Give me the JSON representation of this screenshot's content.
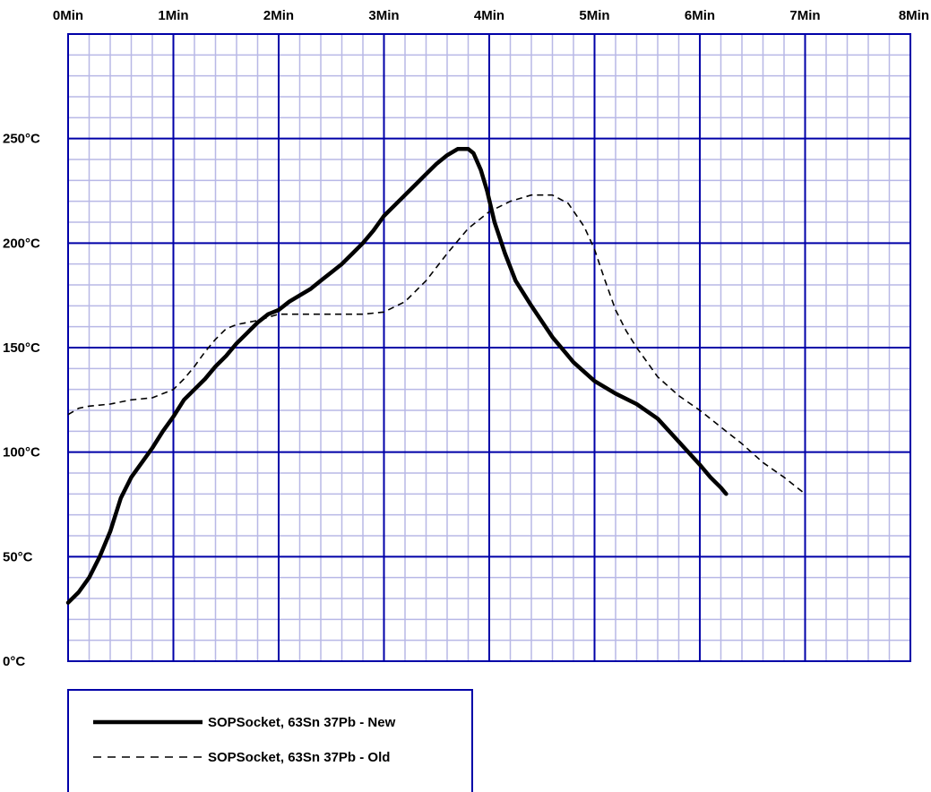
{
  "chart_data": {
    "type": "line",
    "title": "",
    "xlabel": "",
    "ylabel": "",
    "x_unit": "minutes",
    "y_unit": "degC",
    "xlim": [
      0,
      8
    ],
    "ylim": [
      0,
      300
    ],
    "x_ticks": [
      {
        "value": 0,
        "label": "0Min"
      },
      {
        "value": 1,
        "label": "1Min"
      },
      {
        "value": 2,
        "label": "2Min"
      },
      {
        "value": 3,
        "label": "3Min"
      },
      {
        "value": 4,
        "label": "4Min"
      },
      {
        "value": 5,
        "label": "5Min"
      },
      {
        "value": 6,
        "label": "6Min"
      },
      {
        "value": 7,
        "label": "7Min"
      },
      {
        "value": 8,
        "label": "8Min"
      }
    ],
    "y_ticks": [
      {
        "value": 0,
        "label": "0°C"
      },
      {
        "value": 50,
        "label": "50°C"
      },
      {
        "value": 100,
        "label": "100°C"
      },
      {
        "value": 150,
        "label": "150°C"
      },
      {
        "value": 200,
        "label": "200°C"
      },
      {
        "value": 250,
        "label": "250°C"
      }
    ],
    "x_tick_position": "top",
    "grid": {
      "major": true,
      "minor": true,
      "major_color": "#0000a8",
      "minor_color": "#b8b8e6",
      "minor_x_step": 0.2,
      "minor_y_step": 10
    },
    "plot_border_color": "#0000a8",
    "legend_placement": "bottom-left",
    "series": [
      {
        "name": "SOPSocket,  63Sn  37Pb  - New",
        "style": "solid",
        "color": "#000000",
        "points": [
          [
            0.0,
            28
          ],
          [
            0.1,
            33
          ],
          [
            0.2,
            40
          ],
          [
            0.3,
            50
          ],
          [
            0.4,
            62
          ],
          [
            0.5,
            78
          ],
          [
            0.6,
            88
          ],
          [
            0.7,
            95
          ],
          [
            0.8,
            102
          ],
          [
            0.9,
            110
          ],
          [
            1.0,
            117
          ],
          [
            1.1,
            125
          ],
          [
            1.2,
            130
          ],
          [
            1.3,
            135
          ],
          [
            1.4,
            141
          ],
          [
            1.5,
            146
          ],
          [
            1.6,
            152
          ],
          [
            1.7,
            157
          ],
          [
            1.8,
            162
          ],
          [
            1.9,
            166
          ],
          [
            2.0,
            168
          ],
          [
            2.1,
            172
          ],
          [
            2.2,
            175
          ],
          [
            2.3,
            178
          ],
          [
            2.4,
            182
          ],
          [
            2.5,
            186
          ],
          [
            2.6,
            190
          ],
          [
            2.7,
            195
          ],
          [
            2.8,
            200
          ],
          [
            2.9,
            206
          ],
          [
            3.0,
            213
          ],
          [
            3.1,
            218
          ],
          [
            3.2,
            223
          ],
          [
            3.3,
            228
          ],
          [
            3.4,
            233
          ],
          [
            3.5,
            238
          ],
          [
            3.6,
            242
          ],
          [
            3.7,
            245
          ],
          [
            3.8,
            245
          ],
          [
            3.85,
            243
          ],
          [
            3.92,
            235
          ],
          [
            3.98,
            225
          ],
          [
            4.05,
            210
          ],
          [
            4.15,
            195
          ],
          [
            4.25,
            182
          ],
          [
            4.4,
            170
          ],
          [
            4.6,
            155
          ],
          [
            4.8,
            143
          ],
          [
            5.0,
            134
          ],
          [
            5.2,
            128
          ],
          [
            5.4,
            123
          ],
          [
            5.6,
            116
          ],
          [
            5.8,
            105
          ],
          [
            6.0,
            94
          ],
          [
            6.1,
            88
          ],
          [
            6.2,
            83
          ],
          [
            6.25,
            80
          ]
        ]
      },
      {
        "name": "SOPSocket,  63Sn  37Pb  - Old",
        "style": "dashed",
        "color": "#000000",
        "points": [
          [
            0.0,
            118
          ],
          [
            0.1,
            121
          ],
          [
            0.2,
            122
          ],
          [
            0.4,
            123
          ],
          [
            0.6,
            125
          ],
          [
            0.8,
            126
          ],
          [
            1.0,
            130
          ],
          [
            1.1,
            135
          ],
          [
            1.2,
            141
          ],
          [
            1.3,
            148
          ],
          [
            1.4,
            154
          ],
          [
            1.5,
            159
          ],
          [
            1.6,
            161
          ],
          [
            1.8,
            163
          ],
          [
            2.0,
            166
          ],
          [
            2.4,
            166
          ],
          [
            2.8,
            166
          ],
          [
            3.0,
            167
          ],
          [
            3.2,
            172
          ],
          [
            3.4,
            182
          ],
          [
            3.6,
            195
          ],
          [
            3.8,
            207
          ],
          [
            4.0,
            215
          ],
          [
            4.2,
            220
          ],
          [
            4.4,
            223
          ],
          [
            4.6,
            223
          ],
          [
            4.75,
            219
          ],
          [
            4.9,
            208
          ],
          [
            5.0,
            197
          ],
          [
            5.1,
            182
          ],
          [
            5.2,
            168
          ],
          [
            5.3,
            158
          ],
          [
            5.4,
            150
          ],
          [
            5.5,
            143
          ],
          [
            5.6,
            136
          ],
          [
            5.8,
            127
          ],
          [
            6.0,
            120
          ],
          [
            6.2,
            112
          ],
          [
            6.4,
            104
          ],
          [
            6.6,
            95
          ],
          [
            6.8,
            88
          ],
          [
            7.0,
            80
          ]
        ]
      }
    ]
  }
}
